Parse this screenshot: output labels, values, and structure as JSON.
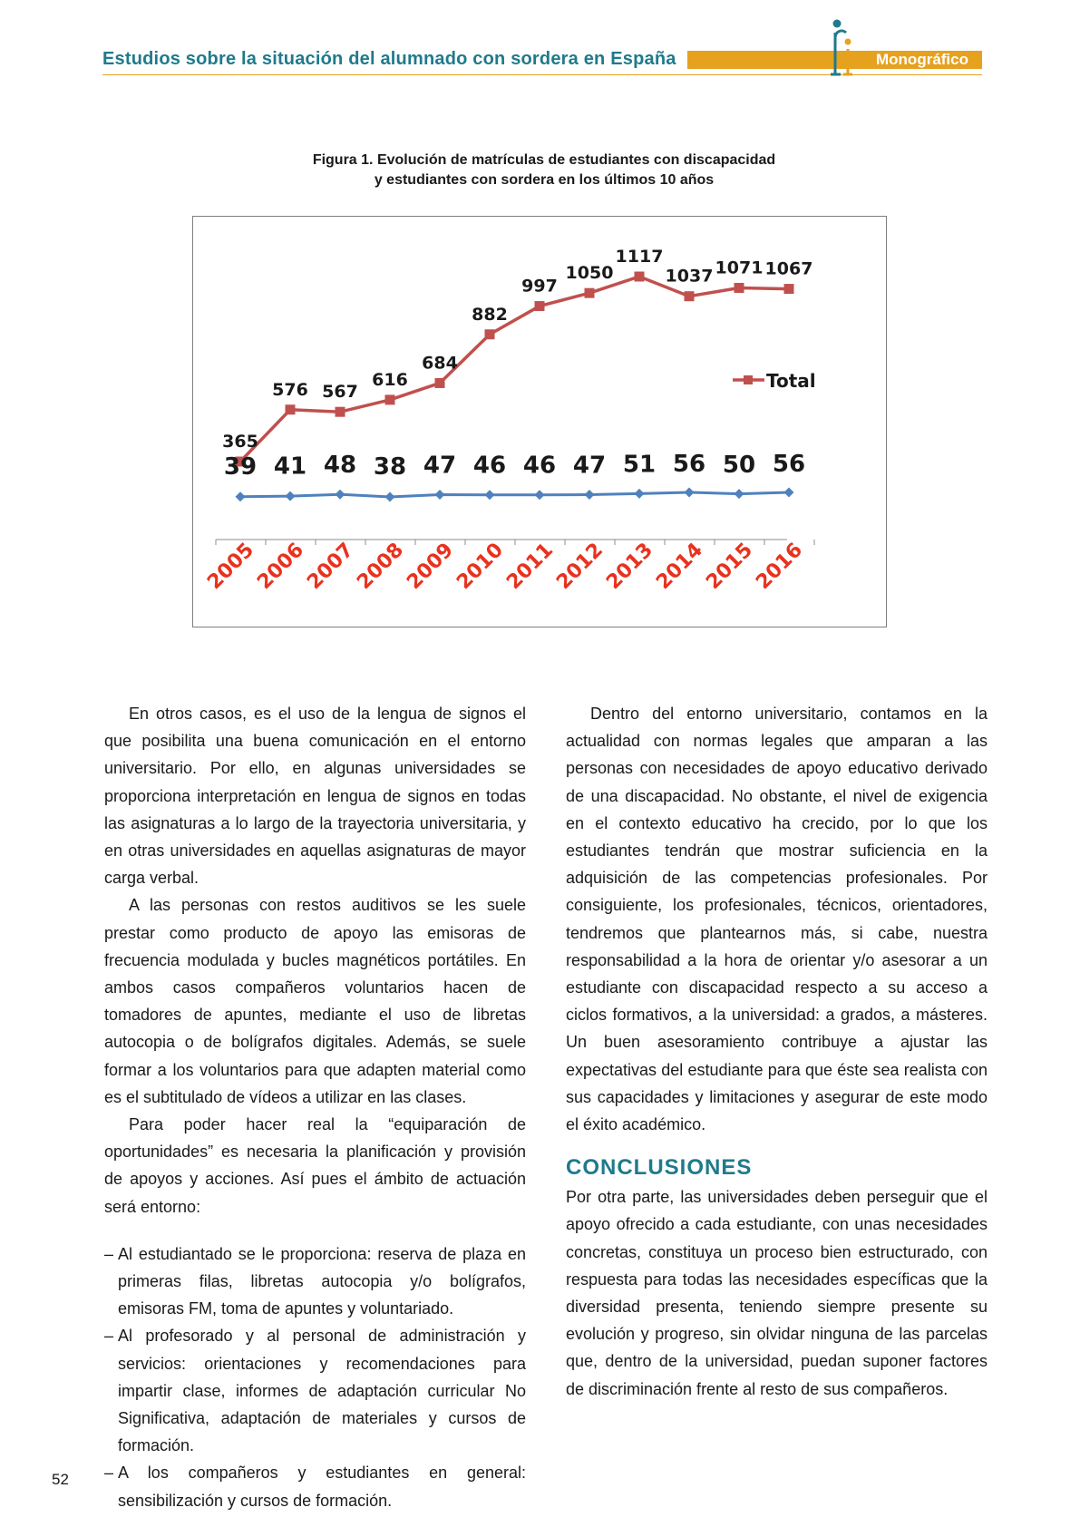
{
  "header": {
    "title": "Estudios sobre la situación del alumnado con sordera en España",
    "section_label": "Monográfico",
    "accent_color": "#e6a11f",
    "title_color": "#1f7a8c"
  },
  "figure": {
    "caption_line1": "Figura 1. Evolución de matrículas de estudiantes con discapacidad",
    "caption_line2": "y estudiantes con sordera en los últimos 10 años"
  },
  "chart_data": {
    "type": "line",
    "categories": [
      "2005",
      "2006",
      "2007",
      "2008",
      "2009",
      "2010",
      "2011",
      "2012",
      "2013",
      "2014",
      "2015",
      "2016"
    ],
    "series": [
      {
        "name": "Total",
        "values": [
          365,
          576,
          567,
          616,
          684,
          882,
          997,
          1050,
          1117,
          1037,
          1071,
          1067
        ],
        "color": "#c0504d",
        "marker": "square"
      },
      {
        "name": "",
        "values": [
          39,
          41,
          48,
          38,
          47,
          46,
          46,
          47,
          51,
          56,
          50,
          56
        ],
        "color": "#4f81bd",
        "marker": "diamond"
      }
    ],
    "legend": {
      "position": "right",
      "entries": [
        "Total"
      ]
    },
    "tick_label_color": "#e8321e",
    "grid": false
  },
  "left_column": {
    "paragraphs": [
      "En otros casos, es el uso de la lengua de signos el que posibilita una buena comunicación en el entorno universitario. Por ello, en algunas universidades se proporciona interpretación en lengua de signos en todas las asignaturas a lo largo de la trayectoria universitaria, y en otras universidades en aquellas asignaturas de mayor carga verbal.",
      "A las personas con restos auditivos se les suele prestar como producto de apoyo las emisoras de frecuencia modulada y bucles magnéticos portátiles. En ambos casos compañeros voluntarios hacen de tomadores de apuntes, mediante el uso de libretas autocopia o de bolígrafos digitales. Además, se suele formar a los voluntarios para que adapten material como es el subtitulado de vídeos a utilizar en las clases.",
      "Para poder hacer real la “equiparación de oportunidades” es necesaria la planificación y provisión de apoyos y acciones. Así pues el ámbito de actuación será entorno:"
    ],
    "bullets": [
      "Al estudiantado se le proporciona: reserva de plaza en primeras filas, libretas autocopia y/o bolígrafos, emisoras FM, toma de apuntes y voluntariado.",
      "Al profesorado y al personal de administración y servicios: orientaciones y recomendaciones para impartir clase, informes de adaptación curricular No Significativa, adaptación de materiales y cursos de formación.",
      "A los compañeros y estudiantes en general: sensibilización y cursos de formación."
    ]
  },
  "right_column": {
    "paragraph1": "Dentro del entorno universitario, contamos en la actualidad con normas legales que amparan a las personas con necesidades de apoyo educativo derivado de una discapacidad. No obstante, el nivel de exigencia en el contexto educativo ha crecido, por lo que los estudiantes tendrán que mostrar suficiencia en la adquisición de las competencias profesionales. Por consiguiente, los profesionales, técnicos, orientadores, tendremos que plantearnos más, si cabe, nuestra responsabilidad a la hora de orientar y/o asesorar a un estudiante con discapacidad respecto a su acceso a ciclos formativos, a la universidad: a grados, a másteres. Un buen asesoramiento contribuye a ajustar las expectativas del estudiante para que éste sea realista con sus capacidades y limitaciones y asegurar de este modo el éxito académico.",
    "heading": "CONCLUSIONES",
    "paragraph2": "Por otra parte, las universidades deben perseguir que el apoyo ofrecido a cada estudiante, con unas necesidades concretas, constituya un proceso bien estructurado, con respuesta para todas las necesidades específicas que la diversidad presenta, teniendo siempre presente su evolución y progreso, sin olvidar ninguna de las parcelas que, dentro de la universidad, puedan suponer factores de discriminación frente al resto de sus compañeros."
  },
  "page_number": "52"
}
